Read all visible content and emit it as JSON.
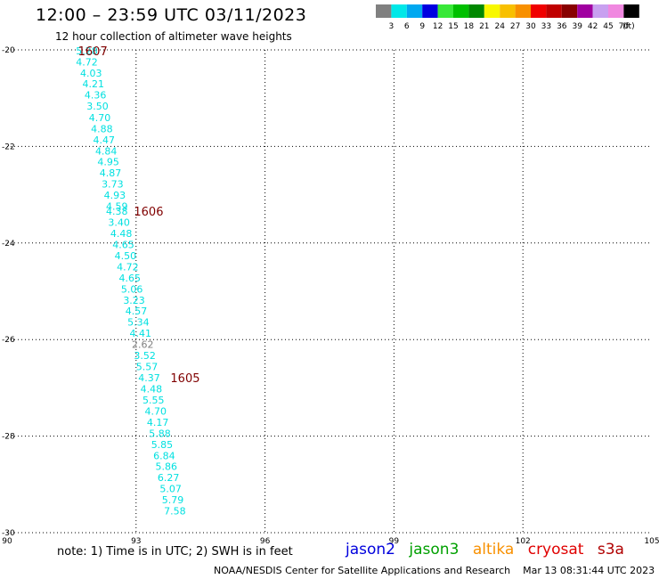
{
  "header": {
    "title": "12:00 – 23:59 UTC 03/11/2023",
    "subtitle": "12 hour collection of altimeter wave heights"
  },
  "legend": {
    "unit": "(ft)",
    "bins": [
      {
        "label": "3",
        "color": "#808080"
      },
      {
        "label": "6",
        "color": "#00e8e8"
      },
      {
        "label": "9",
        "color": "#00a8f0"
      },
      {
        "label": "12",
        "color": "#0000e0"
      },
      {
        "label": "15",
        "color": "#38e838"
      },
      {
        "label": "18",
        "color": "#00c000"
      },
      {
        "label": "21",
        "color": "#008800"
      },
      {
        "label": "24",
        "color": "#f8f800"
      },
      {
        "label": "27",
        "color": "#f8c000"
      },
      {
        "label": "30",
        "color": "#f89000"
      },
      {
        "label": "33",
        "color": "#f00000"
      },
      {
        "label": "36",
        "color": "#c00000"
      },
      {
        "label": "39",
        "color": "#880000"
      },
      {
        "label": "42",
        "color": "#a000a0"
      },
      {
        "label": "45",
        "color": "#c8a0f0"
      },
      {
        "label": "70",
        "color": "#f088e0"
      },
      {
        "label": "",
        "color": "#000000"
      }
    ]
  },
  "chart_data": {
    "type": "scatter",
    "title": "12:00 – 23:59 UTC 03/11/2023",
    "subtitle": "12 hour collection of altimeter wave heights",
    "xlim": [
      90,
      105
    ],
    "ylim": [
      -30,
      -20
    ],
    "x_ticks": [
      90,
      93,
      96,
      99,
      102,
      105
    ],
    "y_ticks": [
      -20,
      -22,
      -24,
      -26,
      -28,
      -30
    ],
    "x_tick_labels": [
      "90",
      "93",
      "96",
      "99",
      "102",
      "105"
    ],
    "y_tick_labels": [
      "-20",
      "-22",
      "-24",
      "-26",
      "-28",
      "-30"
    ],
    "grid": true,
    "unit": "ft",
    "series": [
      {
        "name": "cryosat",
        "color": "#00e0e0",
        "points": [
          {
            "x": 91.6,
            "y": -20.02,
            "v": "5.28"
          },
          {
            "x": 91.6,
            "y": -20.25,
            "v": "4.72"
          },
          {
            "x": 91.7,
            "y": -20.48,
            "v": "4.03"
          },
          {
            "x": 91.75,
            "y": -20.7,
            "v": "4.21"
          },
          {
            "x": 91.8,
            "y": -20.93,
            "v": "4.36"
          },
          {
            "x": 91.85,
            "y": -21.16,
            "v": "3.50"
          },
          {
            "x": 91.9,
            "y": -21.4,
            "v": "4.70"
          },
          {
            "x": 91.95,
            "y": -21.63,
            "v": "4.88"
          },
          {
            "x": 92.0,
            "y": -21.86,
            "v": "4.47"
          },
          {
            "x": 92.05,
            "y": -22.09,
            "v": "4.84"
          },
          {
            "x": 92.1,
            "y": -22.32,
            "v": "4.95"
          },
          {
            "x": 92.15,
            "y": -22.55,
            "v": "4.87"
          },
          {
            "x": 92.2,
            "y": -22.78,
            "v": "3.73"
          },
          {
            "x": 92.25,
            "y": -23.01,
            "v": "4.93"
          },
          {
            "x": 92.3,
            "y": -23.24,
            "v": "4.59"
          },
          {
            "x": 92.3,
            "y": -23.34,
            "v": "4.38"
          },
          {
            "x": 92.35,
            "y": -23.57,
            "v": "3.40"
          },
          {
            "x": 92.4,
            "y": -23.8,
            "v": "4.48"
          },
          {
            "x": 92.45,
            "y": -24.03,
            "v": "4.65"
          },
          {
            "x": 92.5,
            "y": -24.26,
            "v": "4.50"
          },
          {
            "x": 92.55,
            "y": -24.49,
            "v": "4.72"
          },
          {
            "x": 92.6,
            "y": -24.72,
            "v": "4.65"
          },
          {
            "x": 92.65,
            "y": -24.95,
            "v": "5.06"
          },
          {
            "x": 92.7,
            "y": -25.18,
            "v": "3.23"
          },
          {
            "x": 92.75,
            "y": -25.41,
            "v": "4.57"
          },
          {
            "x": 92.8,
            "y": -25.64,
            "v": "5.34"
          },
          {
            "x": 92.85,
            "y": -25.87,
            "v": "4.41"
          },
          {
            "x": 92.9,
            "y": -26.1,
            "v": "2.62",
            "color": "#808080"
          },
          {
            "x": 92.95,
            "y": -26.33,
            "v": "3.52"
          },
          {
            "x": 93.0,
            "y": -26.56,
            "v": "5.57"
          },
          {
            "x": 93.05,
            "y": -26.79,
            "v": "4.37"
          },
          {
            "x": 93.1,
            "y": -27.02,
            "v": "4.48"
          },
          {
            "x": 93.15,
            "y": -27.25,
            "v": "5.55"
          },
          {
            "x": 93.2,
            "y": -27.48,
            "v": "4.70"
          },
          {
            "x": 93.25,
            "y": -27.71,
            "v": "4.17"
          },
          {
            "x": 93.3,
            "y": -27.94,
            "v": "5.88"
          },
          {
            "x": 93.35,
            "y": -28.17,
            "v": "5.85"
          },
          {
            "x": 93.4,
            "y": -28.4,
            "v": "6.84"
          },
          {
            "x": 93.45,
            "y": -28.63,
            "v": "5.86"
          },
          {
            "x": 93.5,
            "y": -28.86,
            "v": "6.27"
          },
          {
            "x": 93.55,
            "y": -29.09,
            "v": "5.07"
          },
          {
            "x": 93.6,
            "y": -29.32,
            "v": "5.79"
          },
          {
            "x": 93.65,
            "y": -29.55,
            "v": "7.58"
          }
        ]
      }
    ],
    "time_labels": [
      {
        "x": 91.65,
        "y": -20.02,
        "text": "1607"
      },
      {
        "x": 92.95,
        "y": -23.34,
        "text": "1606"
      },
      {
        "x": 93.8,
        "y": -26.79,
        "text": "1605"
      }
    ]
  },
  "footer": {
    "note": "note:  1) Time is in UTC;  2) SWH is in feet",
    "satellites": [
      {
        "name": "jason2",
        "color": "#0000dd"
      },
      {
        "name": "jason3",
        "color": "#00a000"
      },
      {
        "name": "altika",
        "color": "#f89000"
      },
      {
        "name": "cryosat",
        "color": "#e00000"
      },
      {
        "name": "s3a",
        "color": "#b00000"
      }
    ],
    "credit": "NOAA/NESDIS Center for Satellite Applications and Research",
    "timestamp": "Mar 13 08:31:44 UTC 2023"
  }
}
